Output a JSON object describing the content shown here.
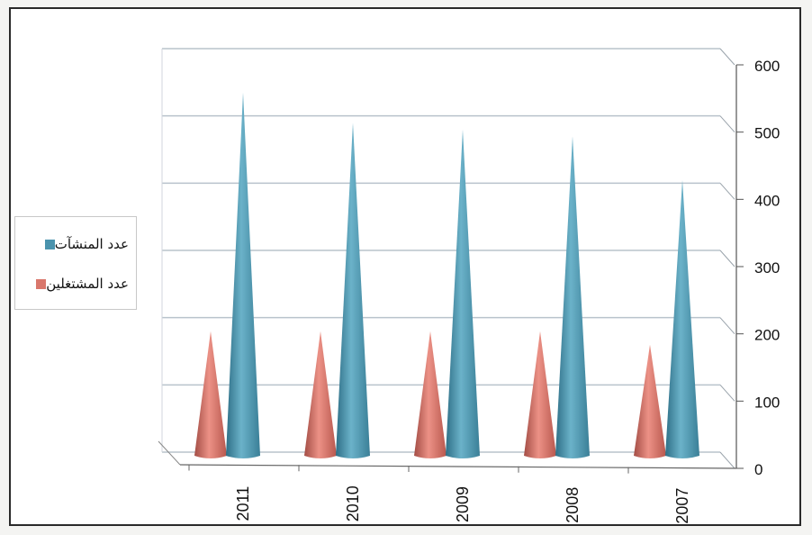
{
  "chart_data": {
    "type": "bar",
    "style": "3d-cone",
    "categories": [
      "2011",
      "2010",
      "2009",
      "2008",
      "2007"
    ],
    "series": [
      {
        "name": "عدد المشتغلين",
        "color": "#d9776c",
        "values": [
          185,
          185,
          185,
          185,
          165
        ]
      },
      {
        "name": "عدد المنشآت",
        "color": "#4a93ad",
        "values": [
          540,
          495,
          485,
          475,
          410
        ]
      }
    ],
    "yticks": [
      0,
      100,
      200,
      300,
      400,
      500,
      600
    ],
    "ylim": [
      0,
      600
    ],
    "yaxis_side": "right",
    "grid": true,
    "legend_position": "left",
    "xlabel": "",
    "ylabel": "",
    "title": ""
  }
}
